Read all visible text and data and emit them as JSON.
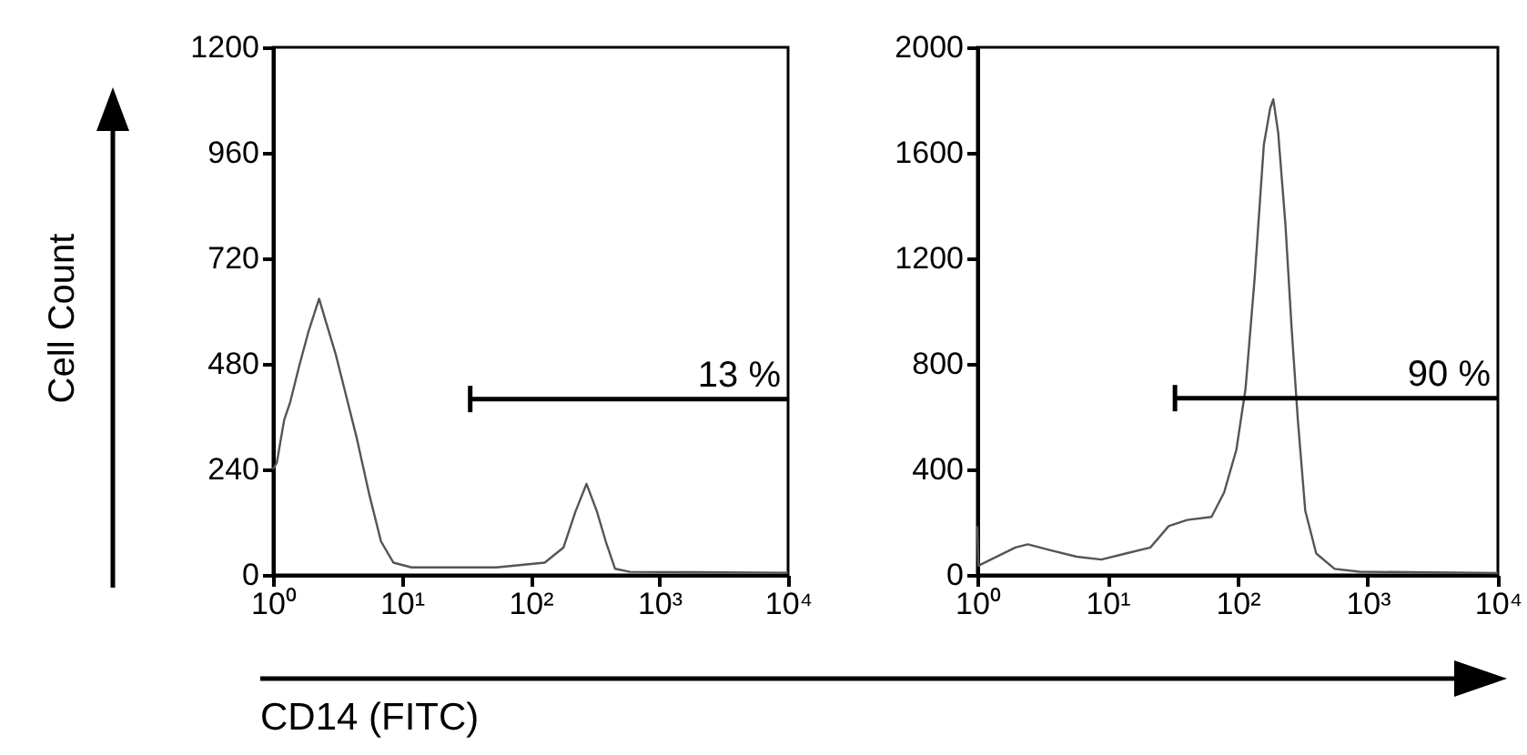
{
  "chart_data": [
    {
      "type": "line",
      "xlabel": "CD14 (FITC)",
      "ylabel": "Cell Count",
      "log": "x",
      "xlim": [
        1,
        10000
      ],
      "xticks": [
        {
          "value": 1,
          "label": "10⁰"
        },
        {
          "value": 10,
          "label": "10¹"
        },
        {
          "value": 100,
          "label": "10²"
        },
        {
          "value": 1000,
          "label": "10³"
        },
        {
          "value": 10000,
          "label": "10⁴"
        }
      ],
      "ylim": [
        0,
        1200
      ],
      "yticks": [
        0,
        240,
        480,
        720,
        960,
        1200
      ],
      "annotations": [
        {
          "text": "13 %",
          "x": 10000,
          "y": 400
        }
      ],
      "series": [
        {
          "color": "#555555",
          "x": [
            1,
            1.07,
            1.22,
            1.36,
            1.6,
            1.88,
            2.28,
            2.6,
            3.06,
            3.6,
            4.48,
            5.56,
            6.9,
            8.6,
            11.9,
            25.5,
            54.4,
            129,
            180,
            224,
            272,
            327,
            384,
            453,
            590,
            10000
          ],
          "values": [
            240,
            255,
            352,
            393,
            476,
            552,
            628,
            572,
            503,
            421,
            310,
            186,
            76,
            28,
            17,
            17,
            17,
            28,
            62,
            145,
            207,
            145,
            76,
            14,
            7,
            5
          ]
        },
        {
          "color": "#000000",
          "x": [
            34,
            10000
          ],
          "values": [
            400,
            400
          ],
          "errors": [
            30,
            null
          ]
        }
      ]
    },
    {
      "type": "line",
      "log": "x",
      "xlim": [
        1,
        10000
      ],
      "xticks": [
        {
          "value": 1,
          "label": "10⁰"
        },
        {
          "value": 10,
          "label": "10¹"
        },
        {
          "value": 100,
          "label": "10²"
        },
        {
          "value": 1000,
          "label": "10³"
        },
        {
          "value": 10000,
          "label": "10⁴"
        }
      ],
      "ylim": [
        0,
        2000
      ],
      "yticks": [
        0,
        400,
        800,
        1200,
        1600,
        2000
      ],
      "annotations": [
        {
          "text": "90 %",
          "x": 10000,
          "y": 670
        }
      ],
      "series": [
        {
          "color": "#555555",
          "x": [
            1,
            1.02,
            1.27,
            1.96,
            2.44,
            3.76,
            5.8,
            8.97,
            13.8,
            21.4,
            29.5,
            40.9,
            63,
            78.7,
            97.8,
            115,
            135,
            159,
            178,
            188,
            205,
            233,
            260,
            290,
            331,
            402,
            556,
            859,
            10000
          ],
          "values": [
            185,
            35,
            58,
            104,
            116,
            92,
            69,
            58,
            81,
            104,
            185,
            208,
            220,
            312,
            474,
            705,
            1121,
            1630,
            1769,
            1803,
            1676,
            1329,
            936,
            590,
            243,
            81,
            23,
            12,
            7
          ]
        },
        {
          "color": "#000000",
          "x": [
            33,
            10000
          ],
          "values": [
            670,
            670
          ],
          "errors": [
            50,
            null
          ]
        }
      ]
    }
  ]
}
